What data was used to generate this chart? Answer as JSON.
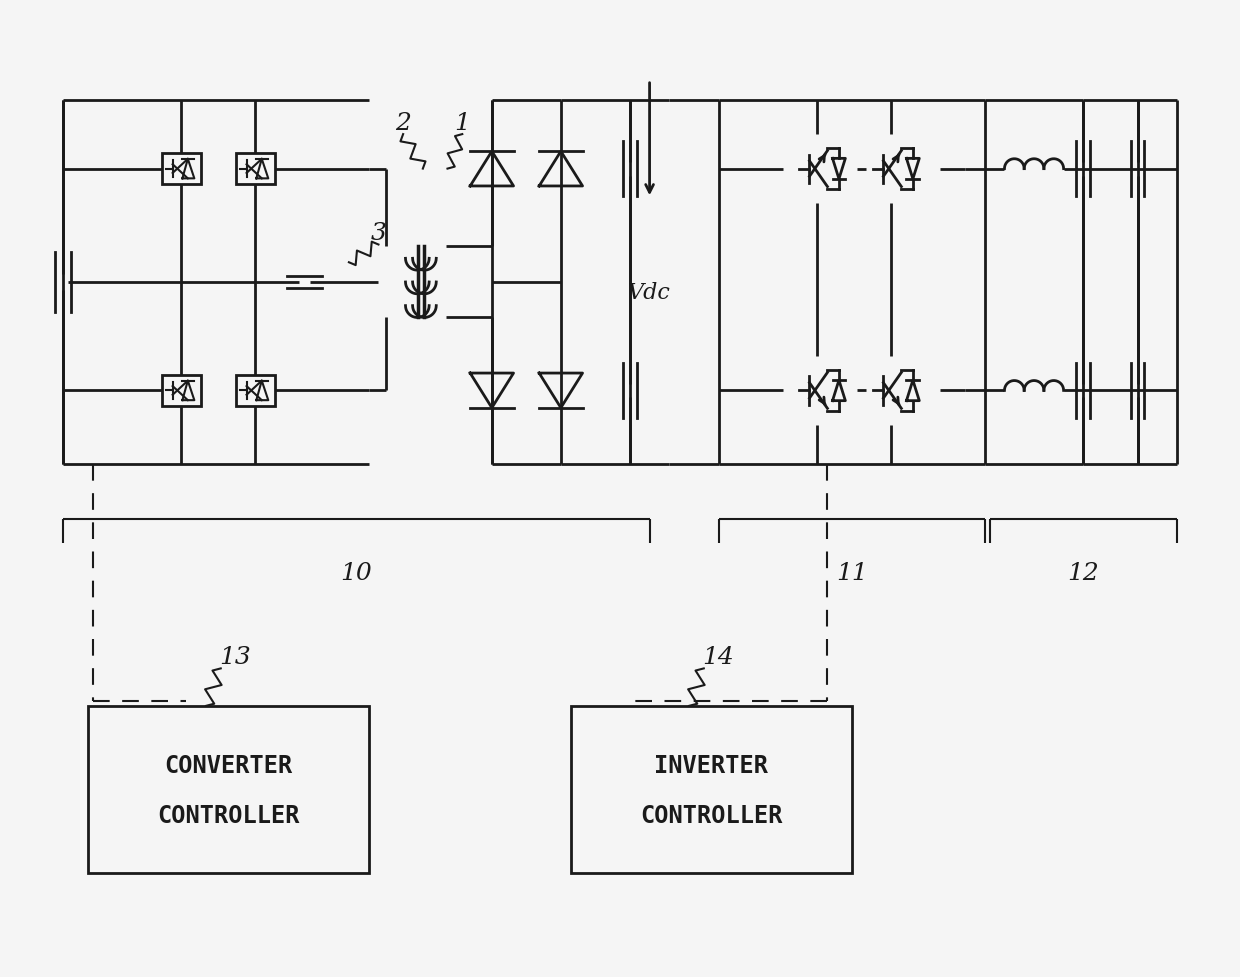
{
  "bg_color": "#f5f5f5",
  "line_color": "#1a1a1a",
  "line_width": 2.0,
  "thin_lw": 1.5,
  "fig_width": 12.4,
  "fig_height": 9.78,
  "converter_text": [
    "CONVERTER",
    "CONTROLLER"
  ],
  "inverter_text": [
    "INVERTER",
    "CONTROLLER"
  ],
  "label_fontsize": 18,
  "text_fontsize": 17
}
